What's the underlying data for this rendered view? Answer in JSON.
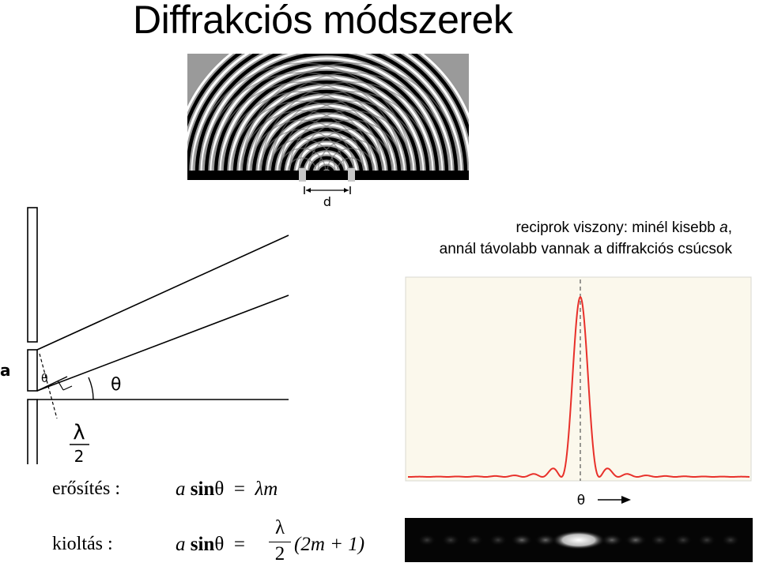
{
  "title": "Diffrakciós módszerek",
  "caption": {
    "line1_prefix": "reciprok viszony: minél kisebb ",
    "line1_var": "a",
    "line1_suffix": ",",
    "line2": "annál távolabb vannak a diffrakciós csúcsok"
  },
  "wave_figure": {
    "slit_label": "d"
  },
  "slit_figure": {
    "width_label": "a",
    "angle_label_small": "θ",
    "angle_label": "θ",
    "path_numerator": "λ",
    "path_denominator": "2"
  },
  "plot": {
    "x_axis_label": "θ",
    "curve_color": "#e8302a",
    "background_color": "#fbf8ec"
  },
  "formulas": {
    "reinforcement_label": "erősítés :",
    "reinforcement_lhs_var": "a",
    "reinforcement_lhs_fn": "sin",
    "reinforcement_lhs_angle": "θ",
    "reinforcement_eq": "=",
    "reinforcement_rhs": "λm",
    "cancellation_label": "kioltás :",
    "cancellation_lhs_var": "a",
    "cancellation_lhs_fn": "sin",
    "cancellation_lhs_angle": "θ",
    "cancellation_eq": "=",
    "cancellation_frac_num": "λ",
    "cancellation_frac_den": "2",
    "cancellation_rhs": "(2m + 1)"
  }
}
